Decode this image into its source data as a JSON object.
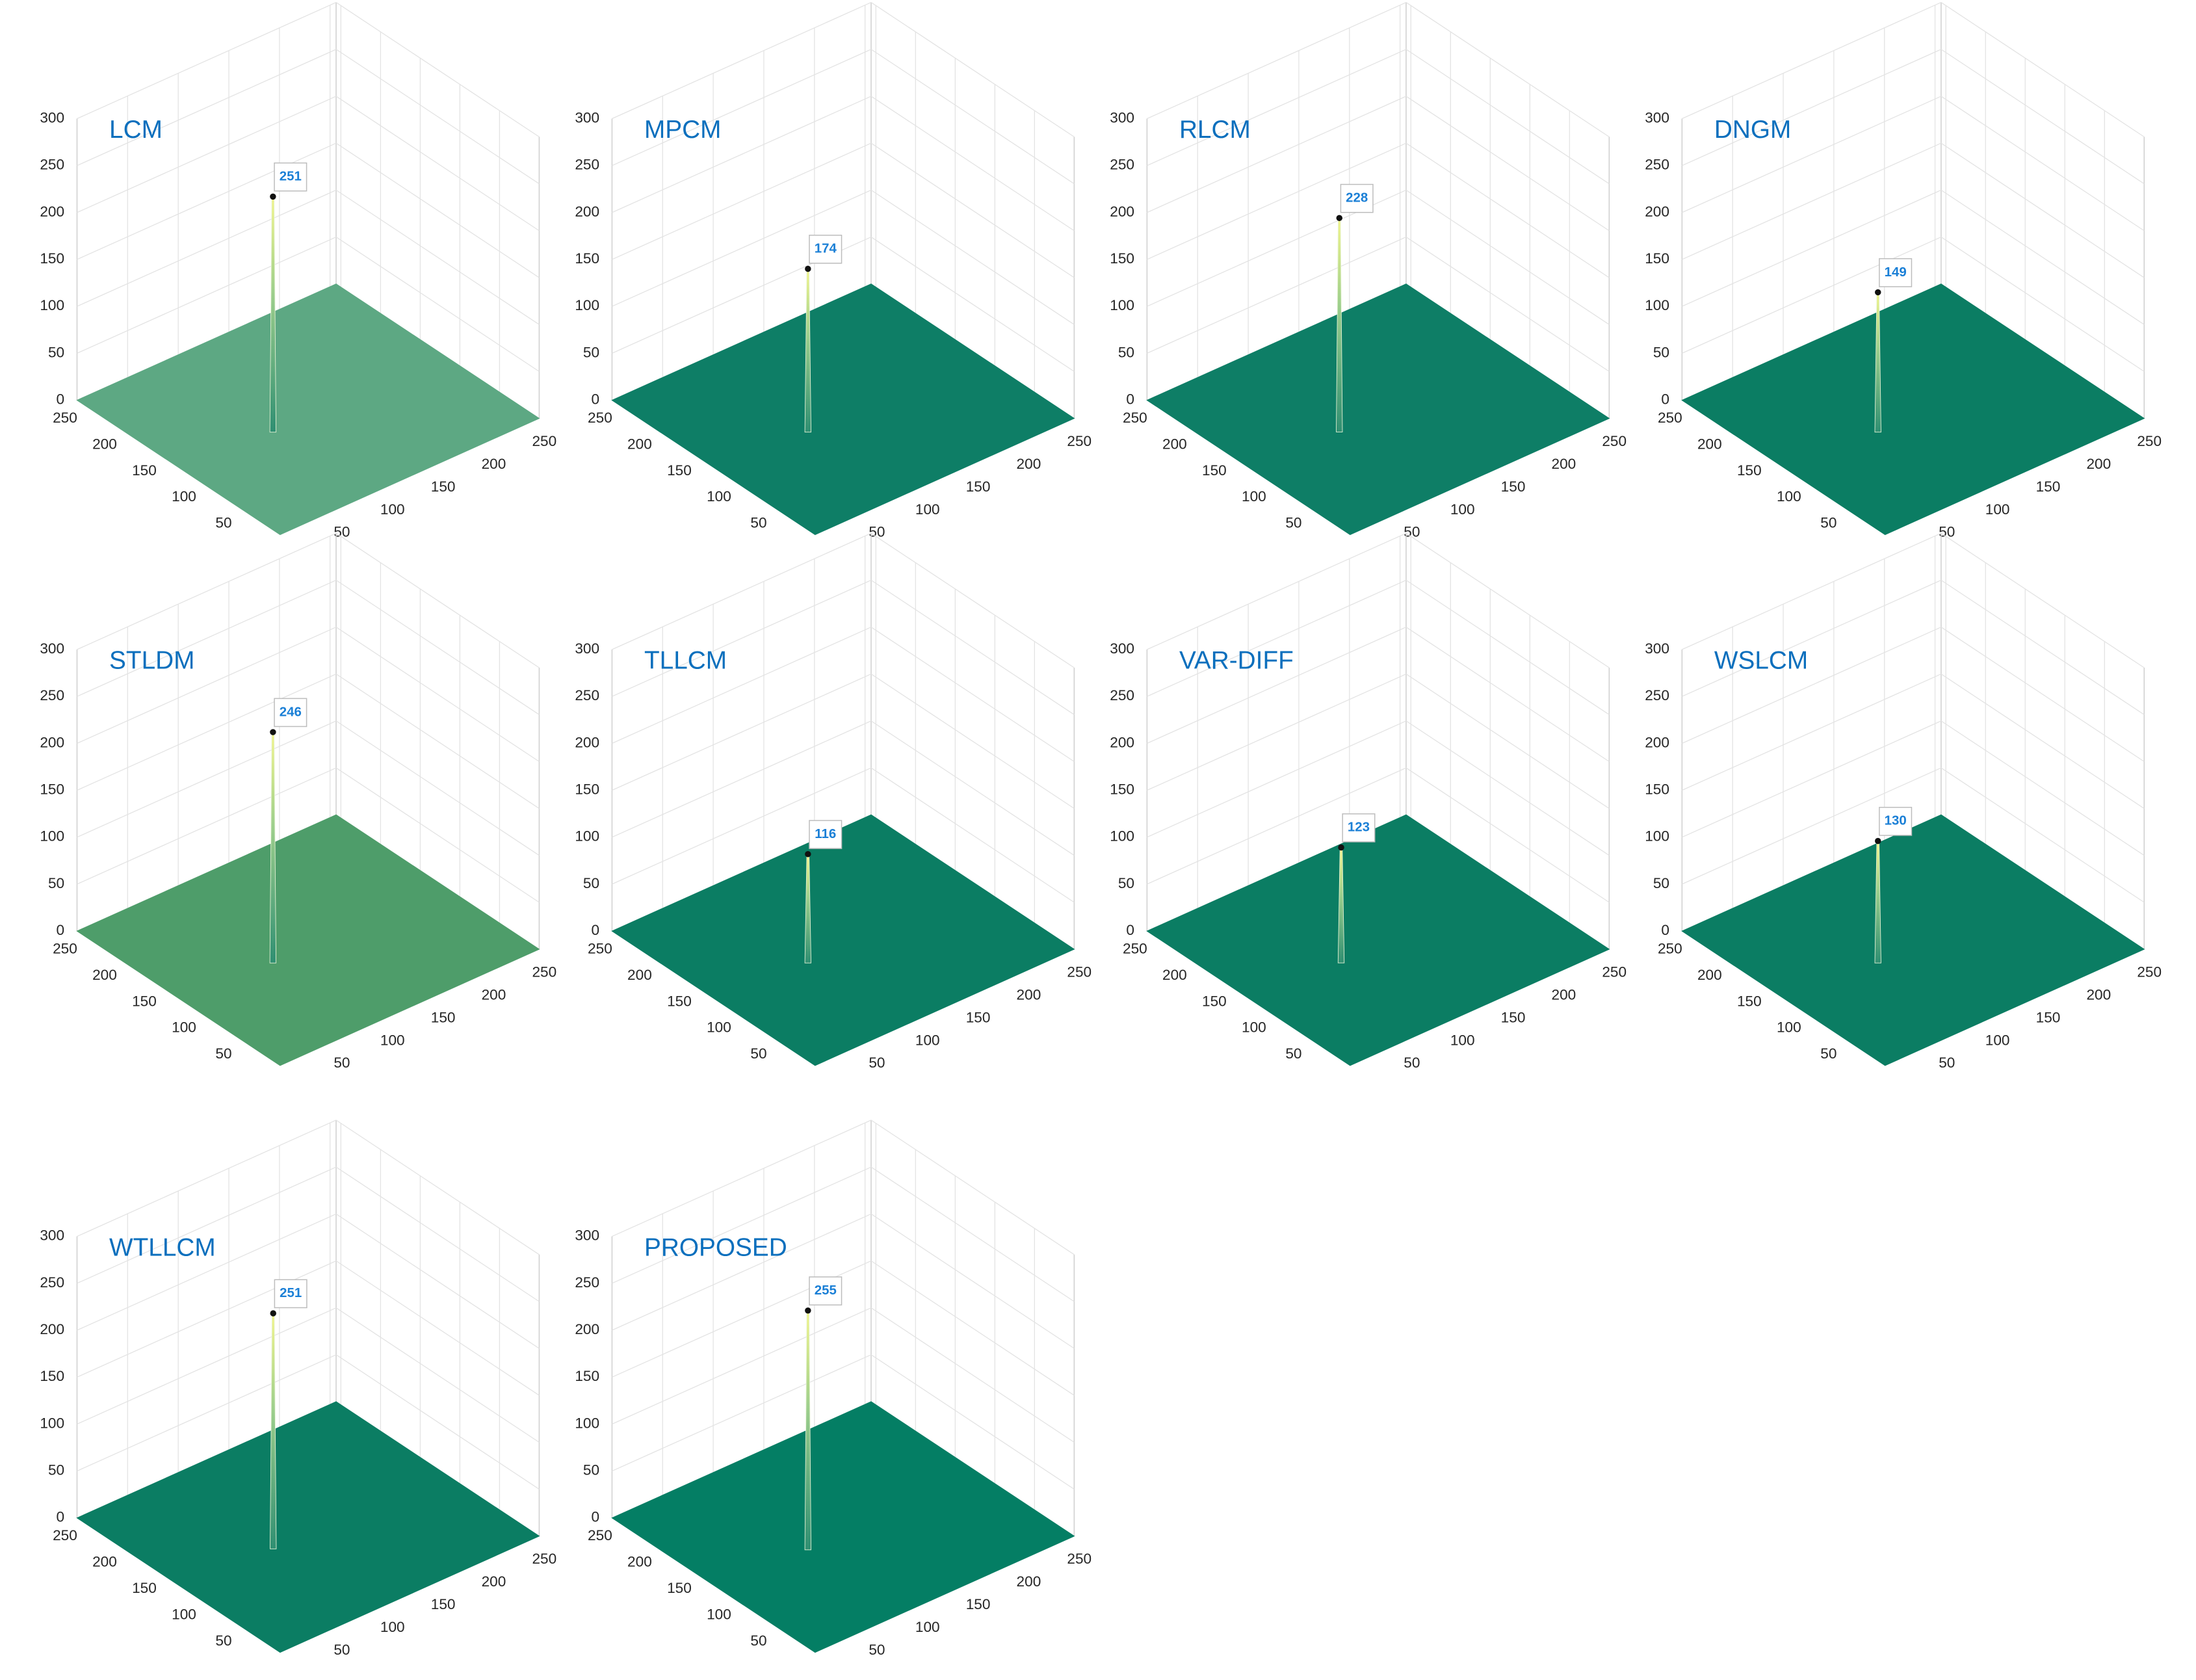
{
  "chart_data": [
    {
      "type": "surface",
      "title": "LCM",
      "surface_color": "#5da883",
      "xlim": [
        0,
        256
      ],
      "ylim": [
        0,
        256
      ],
      "zlim": [
        0,
        300
      ],
      "xticks": [
        50,
        100,
        150,
        200,
        250
      ],
      "yticks": [
        50,
        100,
        150,
        200,
        250
      ],
      "zticks": [
        0,
        50,
        100,
        150,
        200,
        250,
        300
      ],
      "peak": {
        "x": 87,
        "y": 120,
        "z": 251
      }
    },
    {
      "type": "surface",
      "title": "MPCM",
      "surface_color": "#0e7e66",
      "xlim": [
        0,
        256
      ],
      "ylim": [
        0,
        256
      ],
      "zlim": [
        0,
        300
      ],
      "xticks": [
        50,
        100,
        150,
        200,
        250
      ],
      "yticks": [
        50,
        100,
        150,
        200,
        250
      ],
      "zticks": [
        0,
        50,
        100,
        150,
        200,
        250,
        300
      ],
      "peak": {
        "x": 87,
        "y": 120,
        "z": 174
      }
    },
    {
      "type": "surface",
      "title": "RLCM",
      "surface_color": "#0e7e66",
      "xlim": [
        0,
        256
      ],
      "ylim": [
        0,
        256
      ],
      "zlim": [
        0,
        300
      ],
      "xticks": [
        50,
        100,
        150,
        200,
        250
      ],
      "yticks": [
        50,
        100,
        150,
        200,
        250
      ],
      "zticks": [
        0,
        50,
        100,
        150,
        200,
        250,
        300
      ],
      "peak": {
        "x": 85,
        "y": 122,
        "z": 228
      }
    },
    {
      "type": "surface",
      "title": "DNGM",
      "surface_color": "#0b7d63",
      "xlim": [
        0,
        256
      ],
      "ylim": [
        0,
        256
      ],
      "zlim": [
        0,
        300
      ],
      "xticks": [
        50,
        100,
        150,
        200,
        250
      ],
      "yticks": [
        50,
        100,
        150,
        200,
        250
      ],
      "zticks": [
        0,
        50,
        100,
        150,
        200,
        250,
        300
      ],
      "peak": {
        "x": 87,
        "y": 120,
        "z": 149
      }
    },
    {
      "type": "surface",
      "title": "STLDM",
      "surface_color": "#4e9d6a",
      "xlim": [
        0,
        256
      ],
      "ylim": [
        0,
        256
      ],
      "zlim": [
        0,
        300
      ],
      "xticks": [
        50,
        100,
        150,
        200,
        250
      ],
      "yticks": [
        50,
        100,
        150,
        200,
        250
      ],
      "zticks": [
        0,
        50,
        100,
        150,
        200,
        250,
        300
      ],
      "peak": {
        "x": 87,
        "y": 120,
        "z": 246
      }
    },
    {
      "type": "surface",
      "title": "TLLCM",
      "surface_color": "#0b7d63",
      "xlim": [
        0,
        256
      ],
      "ylim": [
        0,
        256
      ],
      "zlim": [
        0,
        300
      ],
      "xticks": [
        50,
        100,
        150,
        200,
        250
      ],
      "yticks": [
        50,
        100,
        150,
        200,
        250
      ],
      "zticks": [
        0,
        50,
        100,
        150,
        200,
        250,
        300
      ],
      "peak": {
        "x": 87,
        "y": 120,
        "z": 116
      }
    },
    {
      "type": "surface",
      "title": "VAR-DIFF",
      "surface_color": "#0b7d63",
      "xlim": [
        0,
        256
      ],
      "ylim": [
        0,
        256
      ],
      "zlim": [
        0,
        300
      ],
      "xticks": [
        50,
        100,
        150,
        200,
        250
      ],
      "yticks": [
        50,
        100,
        150,
        200,
        250
      ],
      "zticks": [
        0,
        50,
        100,
        150,
        200,
        250,
        300
      ],
      "peak": {
        "x": 86,
        "y": 121,
        "z": 123
      }
    },
    {
      "type": "surface",
      "title": "WSLCM",
      "surface_color": "#0b7d63",
      "xlim": [
        0,
        256
      ],
      "ylim": [
        0,
        256
      ],
      "zlim": [
        0,
        300
      ],
      "xticks": [
        50,
        100,
        150,
        200,
        250
      ],
      "yticks": [
        50,
        100,
        150,
        200,
        250
      ],
      "zticks": [
        0,
        50,
        100,
        150,
        200,
        250,
        300
      ],
      "peak": {
        "x": 87,
        "y": 120,
        "z": 130
      }
    },
    {
      "type": "surface",
      "title": "WTLLCM",
      "surface_color": "#0b7d63",
      "xlim": [
        0,
        256
      ],
      "ylim": [
        0,
        256
      ],
      "zlim": [
        0,
        300
      ],
      "xticks": [
        50,
        100,
        150,
        200,
        250
      ],
      "yticks": [
        50,
        100,
        150,
        200,
        250
      ],
      "zticks": [
        0,
        50,
        100,
        150,
        200,
        250,
        300
      ],
      "peak": {
        "x": 88,
        "y": 121,
        "z": 251
      }
    },
    {
      "type": "surface",
      "title": "PROPOSED",
      "surface_color": "#047e64",
      "xlim": [
        0,
        256
      ],
      "ylim": [
        0,
        256
      ],
      "zlim": [
        0,
        300
      ],
      "xticks": [
        50,
        100,
        150,
        200,
        250
      ],
      "yticks": [
        50,
        100,
        150,
        200,
        250
      ],
      "zticks": [
        0,
        50,
        100,
        150,
        200,
        250,
        300
      ],
      "peak": {
        "x": 87,
        "y": 120,
        "z": 255
      }
    }
  ]
}
